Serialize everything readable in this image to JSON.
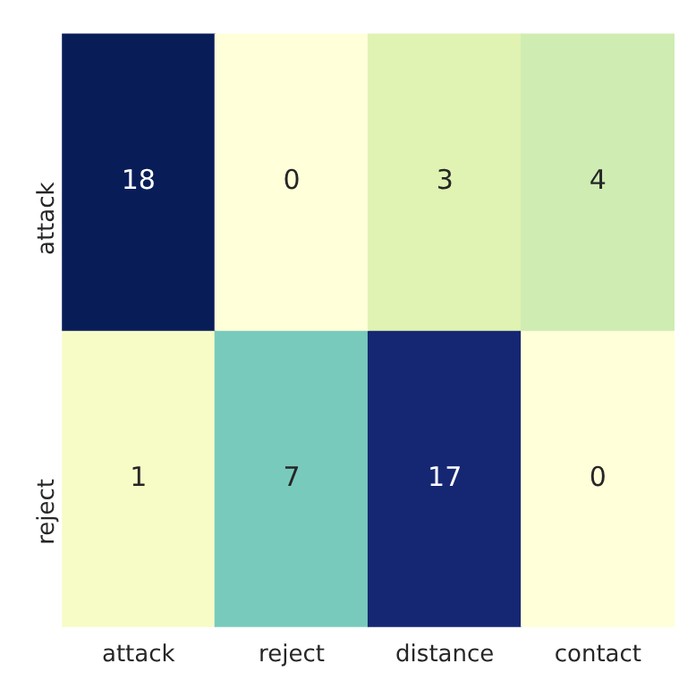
{
  "chart_data": {
    "type": "heatmap",
    "categories": [
      "attack",
      "reject",
      "distance",
      "contact"
    ],
    "y_categories": [
      "attack",
      "reject"
    ],
    "data_labels": true,
    "cells": [
      [
        18,
        0,
        3,
        4
      ],
      [
        1,
        7,
        17,
        0
      ]
    ]
  }
}
